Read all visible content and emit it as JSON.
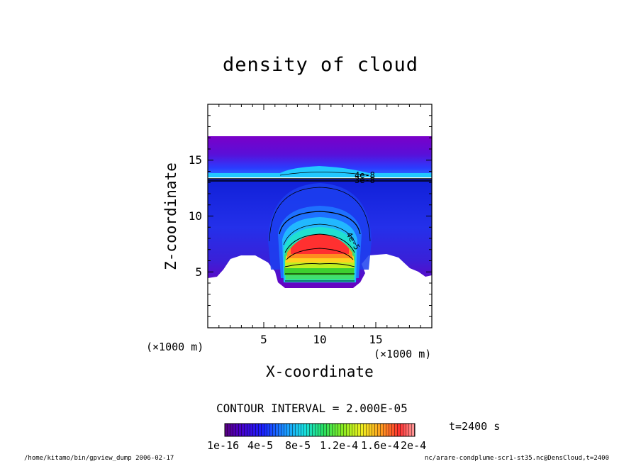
{
  "chart_data": {
    "type": "heatmap",
    "title": "density of cloud",
    "xlabel": "X-coordinate",
    "ylabel": "Z-coordinate",
    "x_unit": "(×1000 m)",
    "y_unit": "(×1000 m)",
    "xlim": [
      0,
      20
    ],
    "ylim": [
      0,
      20
    ],
    "x_ticks": [
      "5",
      "10",
      "15"
    ],
    "y_ticks": [
      "5",
      "10",
      "15"
    ],
    "contour_interval_label": "CONTOUR INTERVAL = 2.000E-05",
    "time_label": "t=2400 s",
    "colorbar": {
      "tick_labels": [
        "1e-16",
        "4e-5",
        "8e-5",
        "1.2e-4",
        "1.6e-4",
        "2e-4"
      ],
      "range": [
        0,
        0.0002
      ]
    },
    "contour_labels": [
      "4e-5",
      "4e-8",
      "3e-8",
      "4e-8"
    ],
    "colors": {
      "low": "#6a00b0",
      "mid_low": "#1f2bff",
      "mid": "#1fd0ff",
      "mid_high": "#3ee63e",
      "high": "#ffe600",
      "top": "#ff1a1a"
    }
  },
  "footer": {
    "left": "/home/kitamo/bin/gpview_dump  2006-02-17",
    "right": "nc/arare-condplume-scr1-st35.nc@DensCloud,t=2400"
  }
}
